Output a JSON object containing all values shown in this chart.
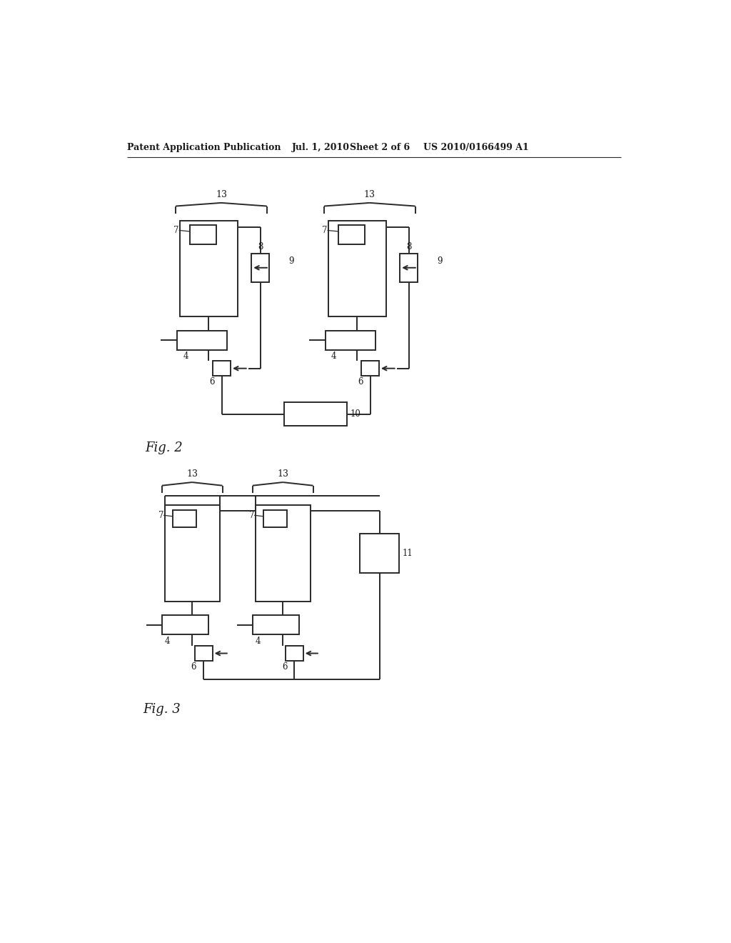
{
  "background_color": "#ffffff",
  "header_text": "Patent Application Publication",
  "header_date": "Jul. 1, 2010",
  "header_sheet": "Sheet 2 of 6",
  "header_patent": "US 2010/0166499 A1",
  "fig2_label": "Fig. 2",
  "fig3_label": "Fig. 3",
  "line_color": "#2a2a2a",
  "line_width": 1.4,
  "text_color": "#1a1a1a"
}
